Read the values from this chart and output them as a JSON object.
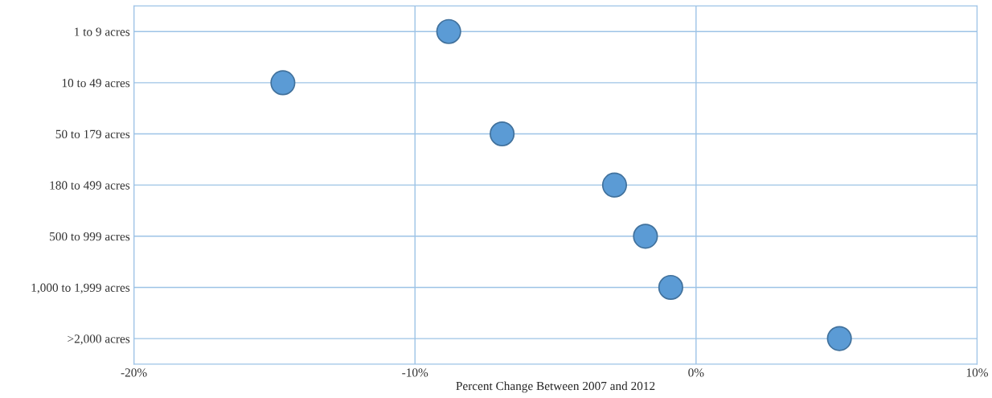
{
  "chart_data": {
    "type": "scatter",
    "orientation": "horizontal",
    "xlabel": "Percent Change Between 2007 and 2012",
    "categories": [
      "1 to 9 acres",
      "10 to 49 acres",
      "50 to 179 acres",
      "180 to 499 acres",
      "500 to 999 acres",
      "1,000 to 1,999 acres",
      ">2,000 acres"
    ],
    "values": [
      -8.8,
      -14.7,
      -6.9,
      -2.9,
      -1.8,
      -0.9,
      5.1
    ],
    "color": "#5b9bd5",
    "marker": "circle",
    "xlim": [
      -20,
      10
    ],
    "xticks": [
      {
        "value": -20,
        "label": "-20%"
      },
      {
        "value": -10,
        "label": "-10%"
      },
      {
        "value": 0,
        "label": "0%"
      },
      {
        "value": 10,
        "label": "10%"
      }
    ],
    "grid": true
  }
}
